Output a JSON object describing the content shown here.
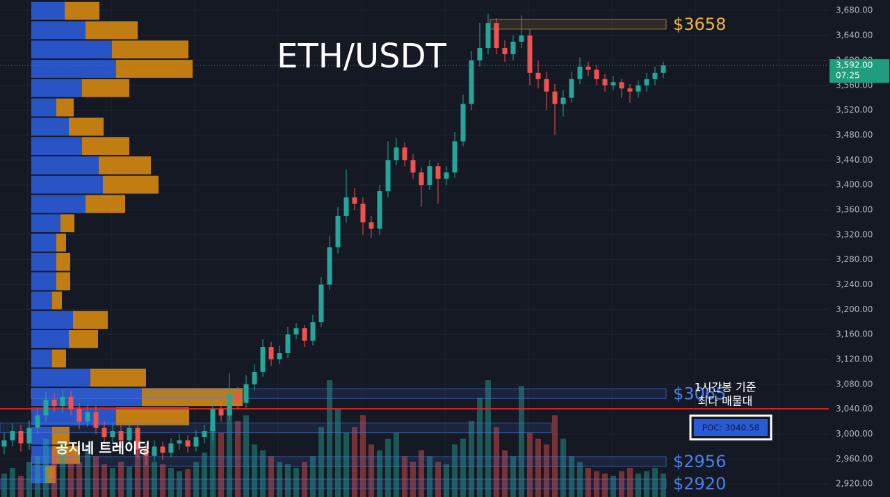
{
  "chart_data": {
    "type": "candlestick",
    "title": "ETH/USDT",
    "watermark": "공지네 트레이딩",
    "annotation": [
      "1시간봉 기준",
      "최다 매물대"
    ],
    "ylim": [
      2899,
      3697
    ],
    "yticks": [
      {
        "value": 2920,
        "label": "2,920.00"
      },
      {
        "value": 2960,
        "label": "2,960.00"
      },
      {
        "value": 3000,
        "label": "3,000.00"
      },
      {
        "value": 3040,
        "label": "3,040.00"
      },
      {
        "value": 3080,
        "label": "3,080.00"
      },
      {
        "value": 3120,
        "label": "3,120.00"
      },
      {
        "value": 3160,
        "label": "3,160.00"
      },
      {
        "value": 3200,
        "label": "3,200.00"
      },
      {
        "value": 3240,
        "label": "3,240.00"
      },
      {
        "value": 3280,
        "label": "3,280.00"
      },
      {
        "value": 3320,
        "label": "3,320.00"
      },
      {
        "value": 3360,
        "label": "3,360.00"
      },
      {
        "value": 3400,
        "label": "3,400.00"
      },
      {
        "value": 3440,
        "label": "3,440.00"
      },
      {
        "value": 3480,
        "label": "3,480.00"
      },
      {
        "value": 3520,
        "label": "3,520.00"
      },
      {
        "value": 3560,
        "label": "3,560.00"
      },
      {
        "value": 3600,
        "label": "3,600.00"
      },
      {
        "value": 3640,
        "label": "3,640.00"
      },
      {
        "value": 3680,
        "label": "3,680.00"
      }
    ],
    "grid": true,
    "up_color": "#26a69a",
    "down_color": "#ef5350",
    "open": [
      2980,
      2990,
      3005,
      2985,
      3010,
      3030,
      3055,
      3045,
      3060,
      3040,
      3020,
      3035,
      3010,
      2995,
      3005,
      2990,
      3010,
      2975,
      2965,
      2980,
      2970,
      2985,
      2990,
      2980,
      2995,
      3005,
      3040,
      3030,
      3065,
      3050,
      3080,
      3100,
      3140,
      3120,
      3130,
      3160,
      3170,
      3150,
      3180,
      3240,
      3300,
      3350,
      3380,
      3370,
      3340,
      3330,
      3390,
      3440,
      3460,
      3440,
      3420,
      3400,
      3430,
      3410,
      3420,
      3470,
      3530,
      3600,
      3620,
      3660,
      3620,
      3610,
      3630,
      3640,
      3580,
      3570,
      3550,
      3530,
      3540,
      3570,
      3590,
      3585,
      3570,
      3560,
      3565,
      3555,
      3550,
      3560,
      3570,
      3580
    ],
    "high": [
      3002,
      3017,
      3015,
      3022,
      3042,
      3068,
      3066,
      3072,
      3070,
      3050,
      3048,
      3045,
      3020,
      3016,
      3014,
      3020,
      3018,
      2984,
      2990,
      2988,
      2994,
      3000,
      2998,
      3006,
      3015,
      3052,
      3060,
      3098,
      3076,
      3095,
      3112,
      3152,
      3148,
      3142,
      3172,
      3178,
      3175,
      3192,
      3252,
      3318,
      3365,
      3425,
      3395,
      3380,
      3350,
      3400,
      3470,
      3475,
      3468,
      3450,
      3428,
      3440,
      3436,
      3430,
      3485,
      3545,
      3615,
      3660,
      3675,
      3668,
      3632,
      3640,
      3672,
      3650,
      3600,
      3582,
      3562,
      3552,
      3582,
      3605,
      3598,
      3592,
      3578,
      3575,
      3570,
      3562,
      3568,
      3580,
      3590,
      3598
    ],
    "low": [
      2968,
      2980,
      2972,
      2975,
      3000,
      3020,
      3035,
      3034,
      3030,
      3008,
      3012,
      3000,
      2984,
      2986,
      2978,
      2980,
      2962,
      2950,
      2956,
      2958,
      2962,
      2975,
      2970,
      2972,
      2985,
      2990,
      3020,
      3022,
      3040,
      3042,
      3070,
      3092,
      3110,
      3112,
      3122,
      3152,
      3140,
      3142,
      3172,
      3232,
      3290,
      3340,
      3360,
      3320,
      3315,
      3320,
      3380,
      3432,
      3430,
      3410,
      3365,
      3392,
      3370,
      3400,
      3412,
      3462,
      3520,
      3590,
      3610,
      3610,
      3598,
      3600,
      3620,
      3560,
      3555,
      3520,
      3480,
      3510,
      3532,
      3562,
      3575,
      3560,
      3550,
      3552,
      3540,
      3532,
      3540,
      3550,
      3560,
      3572
    ],
    "close": [
      2990,
      3005,
      2985,
      3010,
      3030,
      3055,
      3045,
      3060,
      3040,
      3020,
      3035,
      3010,
      2995,
      3005,
      2990,
      3010,
      2975,
      2965,
      2980,
      2970,
      2985,
      2990,
      2980,
      2995,
      3005,
      3040,
      3030,
      3065,
      3050,
      3080,
      3100,
      3140,
      3120,
      3130,
      3160,
      3170,
      3150,
      3180,
      3240,
      3300,
      3350,
      3380,
      3370,
      3340,
      3330,
      3390,
      3440,
      3460,
      3440,
      3420,
      3400,
      3430,
      3410,
      3420,
      3470,
      3530,
      3600,
      3620,
      3660,
      3620,
      3610,
      3630,
      3640,
      3580,
      3570,
      3550,
      3530,
      3540,
      3570,
      3590,
      3585,
      3570,
      3560,
      3565,
      3555,
      3550,
      3560,
      3570,
      3580,
      3592
    ],
    "volume": [
      20,
      25,
      18,
      30,
      35,
      50,
      40,
      45,
      38,
      30,
      45,
      35,
      28,
      25,
      30,
      26,
      40,
      35,
      30,
      28,
      25,
      22,
      24,
      30,
      38,
      60,
      55,
      80,
      65,
      70,
      45,
      40,
      35,
      30,
      28,
      25,
      30,
      35,
      60,
      100,
      75,
      55,
      60,
      70,
      45,
      40,
      50,
      55,
      35,
      30,
      40,
      35,
      30,
      28,
      45,
      50,
      65,
      85,
      100,
      60,
      40,
      35,
      95,
      55,
      50,
      45,
      70,
      50,
      35,
      30,
      25,
      22,
      20,
      18,
      22,
      25,
      20,
      22,
      25,
      20
    ],
    "profile": {
      "bins": [
        2920,
        2951,
        2982,
        3013,
        3044,
        3075,
        3106,
        3137,
        3168,
        3199,
        3230,
        3261,
        3292,
        3323,
        3354,
        3385,
        3416,
        3447,
        3478,
        3509,
        3540,
        3571,
        3602,
        3633,
        3664,
        3695
      ],
      "buy_color": "#2a5bd7",
      "sell_color": "#d4880f",
      "buy": [
        20,
        30,
        30,
        122,
        159,
        85,
        30,
        54,
        60,
        30,
        36,
        36,
        36,
        42,
        78,
        103,
        97,
        73,
        54,
        36,
        73,
        122,
        116,
        78,
        48
      ],
      "sell": [
        15,
        40,
        25,
        105,
        145,
        80,
        20,
        42,
        50,
        14,
        20,
        20,
        14,
        20,
        57,
        80,
        75,
        68,
        50,
        25,
        68,
        110,
        110,
        75,
        50
      ]
    },
    "poc": {
      "value": 3040.58,
      "label": "POC: 3040.58",
      "color": "#e02424"
    },
    "levels": [
      {
        "value": 3658,
        "label": "$3658",
        "color": "#f0b43c"
      },
      {
        "value": 3065,
        "label": "$3065",
        "color": "#4a7fe8"
      },
      {
        "value": 3010,
        "color": "#4a7fe8"
      },
      {
        "value": 2956,
        "label": "$2956",
        "color": "#4a7fe8"
      },
      {
        "value": 2920,
        "label": "$2920",
        "color": "#4a7fe8"
      }
    ],
    "last_price": {
      "value": 3592,
      "label": "3,592.00",
      "color": "#1e9e7c"
    },
    "countdown": "07:25"
  }
}
